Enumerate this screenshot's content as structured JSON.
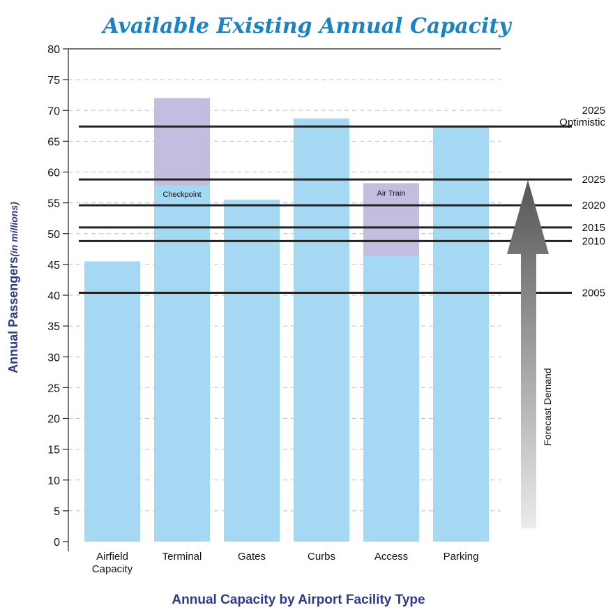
{
  "chart_data": {
    "type": "bar",
    "title": "Available Existing Annual Capacity",
    "xlabel": "Annual Capacity by Airport Facility Type",
    "ylabel": "Annual Passengers",
    "ylabel_suffix": "(in millions)",
    "ylim": [
      0,
      80
    ],
    "yticks": [
      0,
      5,
      10,
      15,
      20,
      25,
      30,
      35,
      40,
      45,
      50,
      55,
      60,
      65,
      70,
      75,
      80
    ],
    "grid": "horizontal-dashed",
    "categories": [
      [
        "Airfield",
        "Capacity"
      ],
      [
        "Terminal"
      ],
      [
        "Gates"
      ],
      [
        "Curbs"
      ],
      [
        "Access"
      ],
      [
        "Parking"
      ]
    ],
    "series": [
      {
        "values": [
          45.5,
          57.8,
          55.5,
          68.7,
          46.4,
          67.5
        ]
      },
      {
        "values": [
          0,
          14.2,
          0,
          0,
          11.8,
          0
        ]
      }
    ],
    "segment_labels": [
      "",
      "Checkpoint",
      "",
      "",
      "Air Train",
      ""
    ],
    "demand_lines": [
      {
        "label": "2005",
        "value": 40.4
      },
      {
        "label": "2010",
        "value": 48.8
      },
      {
        "label": "2015",
        "value": 51.0
      },
      {
        "label": "2020",
        "value": 54.6
      },
      {
        "label": "2025",
        "value": 58.8
      },
      {
        "label": "2025 Optimistic",
        "label_lines": [
          "2025",
          "Optimistic"
        ],
        "value": 67.4
      }
    ],
    "arrow_label": "Forecast Demand",
    "colors": {
      "base": "#a5d8f3",
      "extra": "#c4bde0",
      "demand_line": "#222222",
      "grid": "#bfbfbf",
      "title": "#1b83c4",
      "axis_title": "#2d3a8c",
      "arrow_dark": "#555555",
      "arrow_light": "#ebebeb"
    }
  }
}
